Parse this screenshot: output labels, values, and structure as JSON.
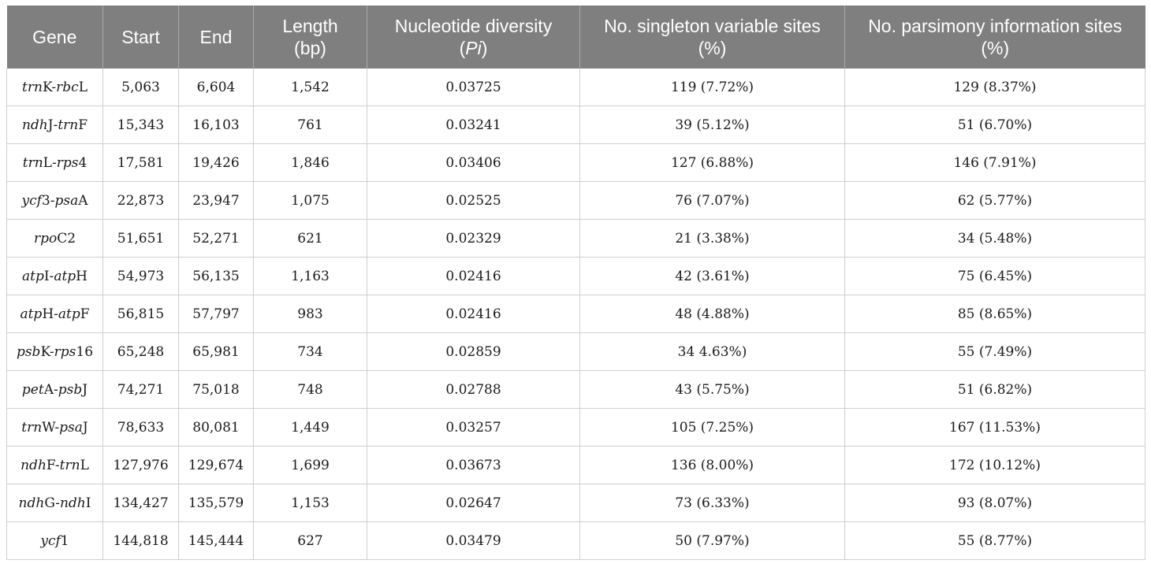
{
  "table": {
    "headers": [
      "Gene",
      "Start",
      "End",
      "Length (bp)",
      "Nucleotide diversity (Pi)",
      "No. singleton variable sites (%)",
      "No. parsimony information sites (%)"
    ],
    "rows": [
      {
        "gene": "trnK-rbcL",
        "start": "5,063",
        "end": "6,604",
        "length": "1,542",
        "diversity": "0.03725",
        "singleton": "119 (7.72%)",
        "parsimony": "129 (8.37%)"
      },
      {
        "gene": "ndhJ-trnF",
        "start": "15,343",
        "end": "16,103",
        "length": "761",
        "diversity": "0.03241",
        "singleton": "39 (5.12%)",
        "parsimony": "51 (6.70%)"
      },
      {
        "gene": "trnL-rps4",
        "start": "17,581",
        "end": "19,426",
        "length": "1,846",
        "diversity": "0.03406",
        "singleton": "127 (6.88%)",
        "parsimony": "146 (7.91%)"
      },
      {
        "gene": "ycf3-psaA",
        "start": "22,873",
        "end": "23,947",
        "length": "1,075",
        "diversity": "0.02525",
        "singleton": "76 (7.07%)",
        "parsimony": "62 (5.77%)"
      },
      {
        "gene": "rpoC2",
        "start": "51,651",
        "end": "52,271",
        "length": "621",
        "diversity": "0.02329",
        "singleton": "21 (3.38%)",
        "parsimony": "34 (5.48%)"
      },
      {
        "gene": "atpI-atpH",
        "start": "54,973",
        "end": "56,135",
        "length": "1,163",
        "diversity": "0.02416",
        "singleton": "42 (3.61%)",
        "parsimony": "75 (6.45%)"
      },
      {
        "gene": "atpH-atpF",
        "start": "56,815",
        "end": "57,797",
        "length": "983",
        "diversity": "0.02416",
        "singleton": "48 (4.88%)",
        "parsimony": "85 (8.65%)"
      },
      {
        "gene": "psbK-rps16",
        "start": "65,248",
        "end": "65,981",
        "length": "734",
        "diversity": "0.02859",
        "singleton": "34 4.63%)",
        "parsimony": "55 (7.49%)"
      },
      {
        "gene": "petA-psbJ",
        "start": "74,271",
        "end": "75,018",
        "length": "748",
        "diversity": "0.02788",
        "singleton": "43 (5.75%)",
        "parsimony": "51 (6.82%)"
      },
      {
        "gene": "trnW-psaJ",
        "start": "78,633",
        "end": "80,081",
        "length": "1,449",
        "diversity": "0.03257",
        "singleton": "105 (7.25%)",
        "parsimony": "167 (11.53%)"
      },
      {
        "gene": "ndhF-trnL",
        "start": "127,976",
        "end": "129,674",
        "length": "1,699",
        "diversity": "0.03673",
        "singleton": "136 (8.00%)",
        "parsimony": "172 (10.12%)"
      },
      {
        "gene": "ndhG-ndhI",
        "start": "134,427",
        "end": "135,579",
        "length": "1,153",
        "diversity": "0.02647",
        "singleton": "73 (6.33%)",
        "parsimony": "93 (8.07%)"
      },
      {
        "gene": "ycf1",
        "start": "144,818",
        "end": "145,444",
        "length": "627",
        "diversity": "0.03479",
        "singleton": "50 (7.97%)",
        "parsimony": "55 (8.77%)"
      }
    ]
  }
}
